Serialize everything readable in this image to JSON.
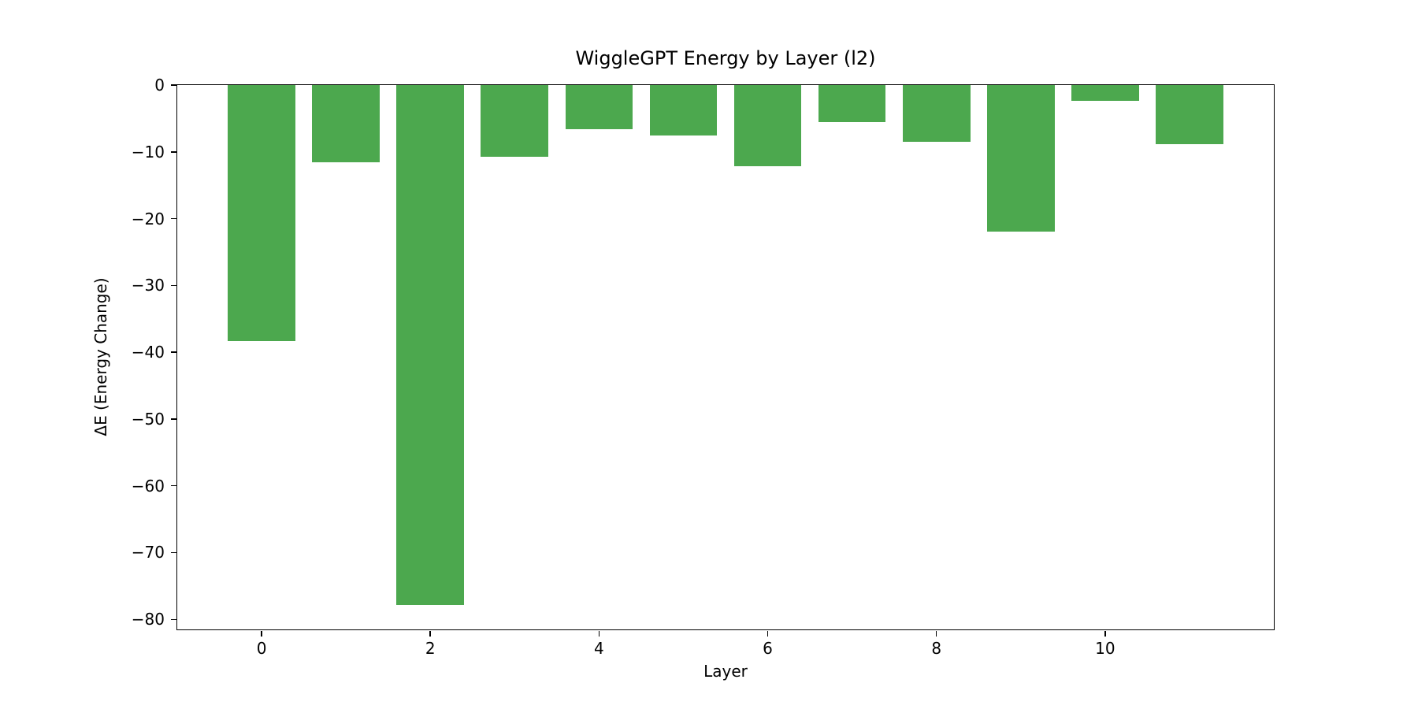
{
  "chart_data": {
    "type": "bar",
    "title": "WiggleGPT Energy by Layer (l2)",
    "xlabel": "Layer",
    "ylabel": "ΔE (Energy Change)",
    "categories": [
      0,
      1,
      2,
      3,
      4,
      5,
      6,
      7,
      8,
      9,
      10,
      11
    ],
    "values": [
      -38.3,
      -11.5,
      -77.8,
      -10.7,
      -6.6,
      -7.5,
      -12.2,
      -5.5,
      -8.5,
      -21.9,
      -2.4,
      -8.9
    ],
    "bar_color": "#4ca84e",
    "bar_width": 0.8,
    "xlim": [
      -1.0,
      12.0
    ],
    "ylim": [
      -81.5,
      0
    ],
    "yticks": [
      0,
      -10,
      -20,
      -30,
      -40,
      -50,
      -60,
      -70,
      -80
    ],
    "xticks": [
      0,
      2,
      4,
      6,
      8,
      10
    ],
    "grid": false,
    "legend": null,
    "spine_color": "#000000",
    "background_color": "#ffffff"
  }
}
